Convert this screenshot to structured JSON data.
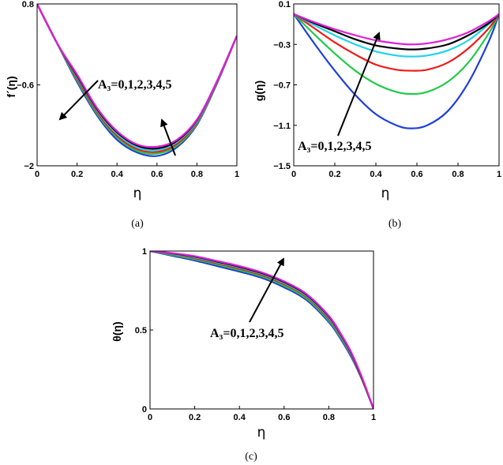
{
  "chart_data": [
    {
      "id": "a",
      "type": "line",
      "caption": "(a)",
      "xlabel": "η",
      "ylabel": "f´(η)",
      "xlim": [
        0,
        1
      ],
      "ylim": [
        -2,
        0.8
      ],
      "xticks": [
        "0",
        "0.2",
        "0.4",
        "0.6",
        "0.8",
        "1"
      ],
      "yticks": [
        "0.8",
        "−0.6",
        "−2"
      ],
      "annotation": "A₃=0,1,2,3,4,5",
      "x": [
        0,
        0.1,
        0.2,
        0.3,
        0.4,
        0.5,
        0.6,
        0.7,
        0.8,
        0.9,
        1.0
      ],
      "series": [
        {
          "color": "#1f3fd9",
          "values": [
            0.8,
            0.12,
            -0.55,
            -1.13,
            -1.55,
            -1.77,
            -1.83,
            -1.68,
            -1.29,
            -0.58,
            0.25
          ]
        },
        {
          "color": "#22c94a",
          "values": [
            0.8,
            0.12,
            -0.52,
            -1.1,
            -1.51,
            -1.74,
            -1.79,
            -1.65,
            -1.27,
            -0.57,
            0.25
          ]
        },
        {
          "color": "#ef1a1a",
          "values": [
            0.8,
            0.12,
            -0.49,
            -1.07,
            -1.48,
            -1.71,
            -1.76,
            -1.62,
            -1.25,
            -0.56,
            0.25
          ]
        },
        {
          "color": "#1fd3ea",
          "values": [
            0.8,
            0.12,
            -0.46,
            -1.04,
            -1.45,
            -1.68,
            -1.73,
            -1.59,
            -1.23,
            -0.55,
            0.25
          ]
        },
        {
          "color": "#000000",
          "values": [
            0.8,
            0.12,
            -0.44,
            -1.02,
            -1.42,
            -1.65,
            -1.7,
            -1.57,
            -1.21,
            -0.54,
            0.25
          ]
        },
        {
          "color": "#e11ed9",
          "values": [
            0.8,
            0.12,
            -0.42,
            -1.0,
            -1.4,
            -1.63,
            -1.67,
            -1.55,
            -1.2,
            -0.54,
            0.25
          ]
        }
      ]
    },
    {
      "id": "b",
      "type": "line",
      "caption": "(b)",
      "xlabel": "η",
      "ylabel": "g(η)",
      "xlim": [
        0,
        1
      ],
      "ylim": [
        -1.5,
        0.1
      ],
      "xticks": [
        "0",
        "0.2",
        "0.4",
        "0.6",
        "0.8",
        "1"
      ],
      "yticks": [
        "0.1",
        "−0.3",
        "−0.7",
        "−1.1",
        "−1.5"
      ],
      "annotation": "A₃=0,1,2,3,4,5",
      "x": [
        0,
        0.1,
        0.2,
        0.3,
        0.4,
        0.5,
        0.57,
        0.65,
        0.75,
        0.85,
        0.95,
        1.0
      ],
      "series": [
        {
          "color": "#1f3fd9",
          "values": [
            0,
            -0.29,
            -0.56,
            -0.8,
            -0.99,
            -1.1,
            -1.13,
            -1.1,
            -0.96,
            -0.68,
            -0.27,
            0
          ]
        },
        {
          "color": "#22c94a",
          "values": [
            0,
            -0.2,
            -0.39,
            -0.56,
            -0.69,
            -0.77,
            -0.79,
            -0.77,
            -0.67,
            -0.48,
            -0.19,
            0
          ]
        },
        {
          "color": "#ef1a1a",
          "values": [
            0,
            -0.14,
            -0.28,
            -0.4,
            -0.5,
            -0.55,
            -0.56,
            -0.55,
            -0.48,
            -0.34,
            -0.14,
            0
          ]
        },
        {
          "color": "#1fd3ea",
          "values": [
            0,
            -0.11,
            -0.21,
            -0.3,
            -0.37,
            -0.41,
            -0.42,
            -0.41,
            -0.36,
            -0.26,
            -0.1,
            0
          ]
        },
        {
          "color": "#000000",
          "values": [
            0,
            -0.09,
            -0.17,
            -0.25,
            -0.31,
            -0.34,
            -0.35,
            -0.34,
            -0.3,
            -0.21,
            -0.09,
            0
          ]
        },
        {
          "color": "#e11ed9",
          "values": [
            0,
            -0.08,
            -0.15,
            -0.21,
            -0.26,
            -0.29,
            -0.3,
            -0.29,
            -0.25,
            -0.18,
            -0.07,
            0
          ]
        }
      ]
    },
    {
      "id": "c",
      "type": "line",
      "caption": "(c)",
      "xlabel": "η",
      "ylabel": "θ(η)",
      "xlim": [
        0,
        1
      ],
      "ylim": [
        0,
        1
      ],
      "xticks": [
        "0",
        "0.2",
        "0.4",
        "0.6",
        "0.8",
        "1"
      ],
      "yticks": [
        "1",
        "0.5",
        "0"
      ],
      "annotation": "A₃=0,1,2,3,4,5",
      "x": [
        0,
        0.1,
        0.2,
        0.3,
        0.4,
        0.5,
        0.6,
        0.7,
        0.8,
        0.85,
        0.9,
        0.95,
        1.0
      ],
      "series": [
        {
          "color": "#1f3fd9",
          "values": [
            1,
            0.97,
            0.94,
            0.905,
            0.87,
            0.83,
            0.77,
            0.69,
            0.55,
            0.45,
            0.33,
            0.18,
            0
          ]
        },
        {
          "color": "#22c94a",
          "values": [
            1,
            0.975,
            0.948,
            0.915,
            0.88,
            0.84,
            0.78,
            0.7,
            0.56,
            0.46,
            0.34,
            0.18,
            0
          ]
        },
        {
          "color": "#ef1a1a",
          "values": [
            1,
            0.98,
            0.955,
            0.922,
            0.888,
            0.848,
            0.79,
            0.71,
            0.57,
            0.47,
            0.345,
            0.185,
            0
          ]
        },
        {
          "color": "#1fd3ea",
          "values": [
            1,
            0.982,
            0.96,
            0.928,
            0.895,
            0.855,
            0.797,
            0.717,
            0.578,
            0.475,
            0.35,
            0.19,
            0
          ]
        },
        {
          "color": "#000000",
          "values": [
            1,
            0.985,
            0.965,
            0.933,
            0.9,
            0.86,
            0.803,
            0.723,
            0.585,
            0.48,
            0.355,
            0.19,
            0
          ]
        },
        {
          "color": "#e11ed9",
          "values": [
            1,
            0.987,
            0.968,
            0.937,
            0.905,
            0.865,
            0.808,
            0.728,
            0.59,
            0.485,
            0.36,
            0.195,
            0
          ]
        }
      ]
    }
  ]
}
